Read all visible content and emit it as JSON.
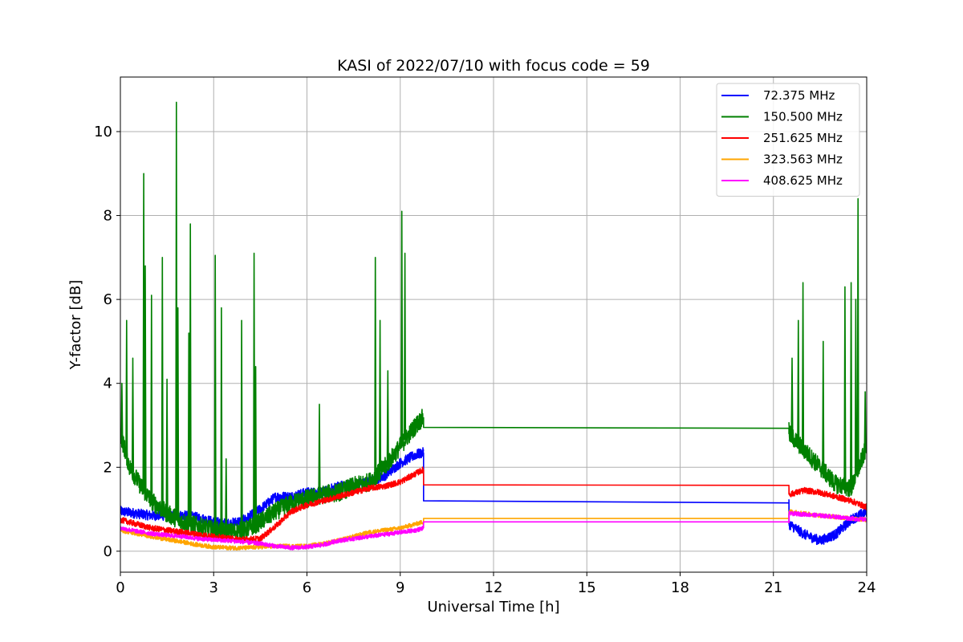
{
  "chart_data": {
    "type": "line",
    "title": "KASI of 2022/07/10 with focus code = 59",
    "xlabel": "Universal Time [h]",
    "ylabel": "Y-factor [dB]",
    "xlim": [
      0,
      24
    ],
    "ylim": [
      -0.5,
      11.3
    ],
    "xticks": [
      0,
      3,
      6,
      9,
      12,
      15,
      18,
      21,
      24
    ],
    "yticks": [
      0,
      2,
      4,
      6,
      8,
      10
    ],
    "grid": true,
    "legend_position": "top-right",
    "series": [
      {
        "name": " 72.375 MHz",
        "color": "#0000ff",
        "x": [
          0,
          0.5,
          1,
          1.5,
          2,
          2.5,
          3,
          3.5,
          4,
          4.5,
          5,
          5.5,
          6,
          6.5,
          7,
          7.5,
          8,
          8.5,
          9,
          9.5,
          9.75,
          9.75,
          21.5,
          21.5,
          22,
          22.5,
          23,
          23.5,
          24
        ],
        "y": [
          0.95,
          0.9,
          0.85,
          0.85,
          0.85,
          0.8,
          0.7,
          0.65,
          0.75,
          1.0,
          1.3,
          1.3,
          1.4,
          1.4,
          1.55,
          1.6,
          1.65,
          1.8,
          2.1,
          2.3,
          2.35,
          1.2,
          1.15,
          0.65,
          0.4,
          0.25,
          0.4,
          0.75,
          0.95
        ],
        "noise": 0.12
      },
      {
        "name": "150.500 MHz",
        "color": "#008000",
        "x": [
          0,
          0.3,
          0.7,
          1,
          1.5,
          2,
          2.5,
          3,
          3.5,
          4,
          4.5,
          5,
          5.5,
          6,
          6.5,
          7,
          7.5,
          8,
          8.5,
          9,
          9.5,
          9.75,
          9.75,
          21.5,
          21.5,
          22,
          22.5,
          23,
          23.5,
          24
        ],
        "y": [
          2.8,
          2.0,
          1.5,
          1.2,
          0.9,
          0.7,
          0.6,
          0.5,
          0.45,
          0.5,
          0.7,
          0.95,
          1.15,
          1.25,
          1.35,
          1.4,
          1.55,
          1.65,
          2.0,
          2.5,
          3.0,
          3.2,
          2.95,
          2.93,
          2.8,
          2.4,
          2.0,
          1.6,
          1.5,
          2.5
        ],
        "noise": 0.22,
        "spikes": [
          [
            0.05,
            4.0
          ],
          [
            0.2,
            5.5
          ],
          [
            0.4,
            4.6
          ],
          [
            0.75,
            9.0
          ],
          [
            0.8,
            6.8
          ],
          [
            1.0,
            6.1
          ],
          [
            1.35,
            7.0
          ],
          [
            1.5,
            4.1
          ],
          [
            1.8,
            10.7
          ],
          [
            1.85,
            5.8
          ],
          [
            2.2,
            5.2
          ],
          [
            2.25,
            7.8
          ],
          [
            3.05,
            7.05
          ],
          [
            3.25,
            5.8
          ],
          [
            3.4,
            2.2
          ],
          [
            3.9,
            5.5
          ],
          [
            4.3,
            7.1
          ],
          [
            4.35,
            4.4
          ],
          [
            6.4,
            3.5
          ],
          [
            8.2,
            7.0
          ],
          [
            8.35,
            5.5
          ],
          [
            8.6,
            4.3
          ],
          [
            9.05,
            8.1
          ],
          [
            9.15,
            7.1
          ],
          [
            21.6,
            4.6
          ],
          [
            21.8,
            5.5
          ],
          [
            21.95,
            6.4
          ],
          [
            22.6,
            5.0
          ],
          [
            23.3,
            6.3
          ],
          [
            23.5,
            6.4
          ],
          [
            23.65,
            6.0
          ],
          [
            23.72,
            8.4
          ],
          [
            23.95,
            3.8
          ]
        ]
      },
      {
        "name": "251.625 MHz",
        "color": "#ff0000",
        "x": [
          0,
          0.5,
          1,
          1.5,
          2,
          2.5,
          3,
          3.5,
          4,
          4.5,
          5,
          5.5,
          6,
          6.5,
          7,
          7.5,
          8,
          8.5,
          9,
          9.5,
          9.75,
          9.75,
          21.5,
          21.5,
          22,
          22.5,
          23,
          23.5,
          24
        ],
        "y": [
          0.75,
          0.65,
          0.55,
          0.5,
          0.45,
          0.4,
          0.35,
          0.3,
          0.28,
          0.3,
          0.6,
          0.95,
          1.1,
          1.2,
          1.3,
          1.4,
          1.5,
          1.55,
          1.65,
          1.85,
          1.95,
          1.58,
          1.57,
          1.35,
          1.45,
          1.4,
          1.3,
          1.2,
          1.05
        ],
        "noise": 0.07
      },
      {
        "name": "323.563 MHz",
        "color": "#ffa500",
        "x": [
          0,
          0.5,
          1,
          1.5,
          2,
          2.5,
          3,
          3.5,
          4,
          4.5,
          5,
          5.5,
          6,
          6.5,
          7,
          7.5,
          8,
          8.5,
          9,
          9.5,
          9.75,
          9.75,
          21.5,
          21.5,
          22,
          22.5,
          23,
          23.5,
          24
        ],
        "y": [
          0.5,
          0.42,
          0.35,
          0.28,
          0.22,
          0.15,
          0.1,
          0.08,
          0.08,
          0.1,
          0.12,
          0.12,
          0.12,
          0.18,
          0.25,
          0.35,
          0.45,
          0.5,
          0.55,
          0.65,
          0.7,
          0.78,
          0.78,
          0.95,
          0.9,
          0.85,
          0.82,
          0.78,
          0.75
        ],
        "noise": 0.05
      },
      {
        "name": "408.625 MHz",
        "color": "#ff00ff",
        "x": [
          0,
          0.5,
          1,
          1.5,
          2,
          2.5,
          3,
          3.5,
          4,
          4.5,
          5,
          5.5,
          6,
          6.5,
          7,
          7.5,
          8,
          8.5,
          9,
          9.5,
          9.75,
          9.75,
          21.5,
          21.5,
          22,
          22.5,
          23,
          23.5,
          24
        ],
        "y": [
          0.55,
          0.48,
          0.42,
          0.38,
          0.35,
          0.3,
          0.27,
          0.25,
          0.22,
          0.18,
          0.12,
          0.08,
          0.1,
          0.15,
          0.25,
          0.3,
          0.35,
          0.4,
          0.45,
          0.5,
          0.55,
          0.7,
          0.7,
          0.9,
          0.88,
          0.85,
          0.82,
          0.78,
          0.75
        ],
        "noise": 0.05
      }
    ]
  }
}
